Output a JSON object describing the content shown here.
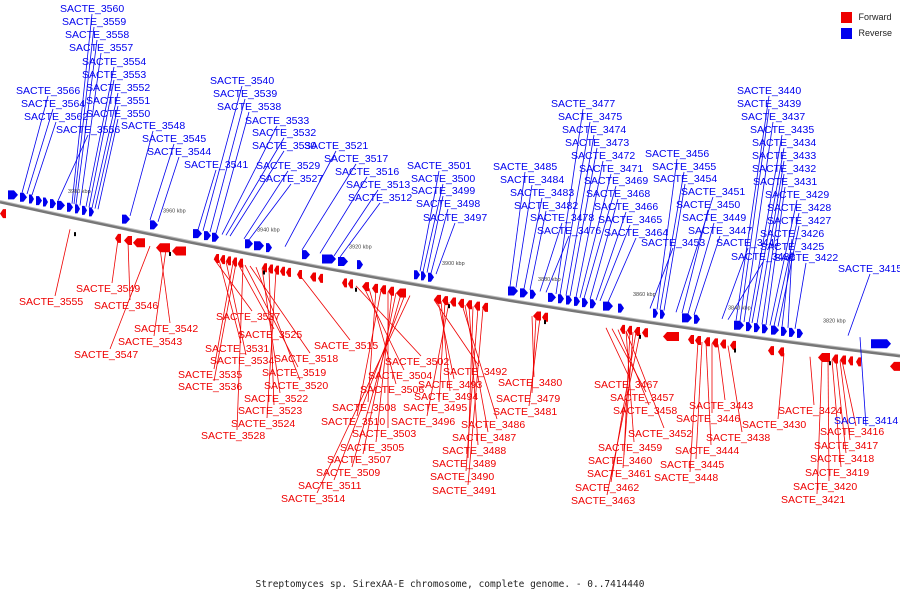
{
  "legend": {
    "forward_label": "Forward",
    "reverse_label": "Reverse",
    "forward_color": "#ee0000",
    "reverse_color": "#0000ee"
  },
  "caption": "Streptomyces sp. SirexAA-E chromosome, complete genome. - 0..7414440",
  "ticks": [
    "3980 kbp",
    "3960 kbp",
    "3940 kbp",
    "3920 kbp",
    "3900 kbp",
    "3880 kbp",
    "3860 kbp",
    "3840 kbp",
    "3820 kbp"
  ],
  "reverse_labels": [
    "SACTE_3560",
    "SACTE_3559",
    "SACTE_3558",
    "SACTE_3557",
    "SACTE_3554",
    "SACTE_3553",
    "SACTE_3552",
    "SACTE_3551",
    "SACTE_3550",
    "SACTE_3566",
    "SACTE_3564",
    "SACTE_3562",
    "SACTE_3556",
    "SACTE_3548",
    "SACTE_3545",
    "SACTE_3544",
    "SACTE_3541",
    "SACTE_3540",
    "SACTE_3539",
    "SACTE_3538",
    "SACTE_3533",
    "SACTE_3532",
    "SACTE_3530",
    "SACTE_3529",
    "SACTE_3527",
    "SACTE_3521",
    "SACTE_3517",
    "SACTE_3516",
    "SACTE_3513",
    "SACTE_3512",
    "SACTE_3501",
    "SACTE_3500",
    "SACTE_3499",
    "SACTE_3498",
    "SACTE_3497",
    "SACTE_3485",
    "SACTE_3484",
    "SACTE_3483",
    "SACTE_3482",
    "SACTE_3478",
    "SACTE_3476",
    "SACTE_3477",
    "SACTE_3475",
    "SACTE_3474",
    "SACTE_3473",
    "SACTE_3472",
    "SACTE_3471",
    "SACTE_3469",
    "SACTE_3468",
    "SACTE_3466",
    "SACTE_3465",
    "SACTE_3464",
    "SACTE_3456",
    "SACTE_3455",
    "SACTE_3454",
    "SACTE_3451",
    "SACTE_3450",
    "SACTE_3449",
    "SACTE_3447",
    "SACTE_3453",
    "SACTE_3441",
    "SACTE_3436",
    "SACTE_3440",
    "SACTE_3439",
    "SACTE_3437",
    "SACTE_3435",
    "SACTE_3434",
    "SACTE_3433",
    "SACTE_3432",
    "SACTE_3431",
    "SACTE_3429",
    "SACTE_3428",
    "SACTE_3427",
    "SACTE_3426",
    "SACTE_3425",
    "SACTE_3422",
    "SACTE_3415",
    "SACTE_3414"
  ],
  "forward_labels": [
    "SACTE_3555",
    "SACTE_3549",
    "SACTE_3546",
    "SACTE_3542",
    "SACTE_3543",
    "SACTE_3547",
    "SACTE_3537",
    "SACTE_3531",
    "SACTE_3534",
    "SACTE_3535",
    "SACTE_3536",
    "SACTE_3525",
    "SACTE_3519",
    "SACTE_3518",
    "SACTE_3520",
    "SACTE_3522",
    "SACTE_3523",
    "SACTE_3524",
    "SACTE_3528",
    "SACTE_3515",
    "SACTE_3502",
    "SACTE_3504",
    "SACTE_3506",
    "SACTE_3508",
    "SACTE_3510",
    "SACTE_3503",
    "SACTE_3505",
    "SACTE_3507",
    "SACTE_3509",
    "SACTE_3511",
    "SACTE_3514",
    "SACTE_3492",
    "SACTE_3493",
    "SACTE_3494",
    "SACTE_3495",
    "SACTE_3496",
    "SACTE_3486",
    "SACTE_3487",
    "SACTE_3488",
    "SACTE_3489",
    "SACTE_3490",
    "SACTE_3491",
    "SACTE_3480",
    "SACTE_3479",
    "SACTE_3481",
    "SACTE_3467",
    "SACTE_3457",
    "SACTE_3458",
    "SACTE_3452",
    "SACTE_3459",
    "SACTE_3460",
    "SACTE_3461",
    "SACTE_3462",
    "SACTE_3463",
    "SACTE_3443",
    "SACTE_3446",
    "SACTE_3438",
    "SACTE_3444",
    "SACTE_3445",
    "SACTE_3448",
    "SACTE_3424",
    "SACTE_3430",
    "SACTE_3416",
    "SACTE_3417",
    "SACTE_3418",
    "SACTE_3419",
    "SACTE_3420",
    "SACTE_3421"
  ]
}
